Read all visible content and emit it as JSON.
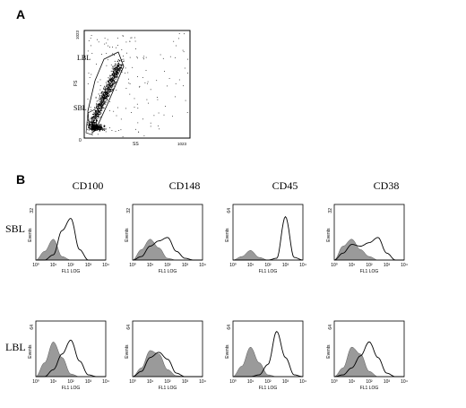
{
  "figure": {
    "panel_a_label": "A",
    "panel_b_label": "B"
  },
  "scatter": {
    "gate_labels": [
      "LBL",
      "SBL"
    ],
    "y_axis_label": "FS",
    "x_axis_label": "SS",
    "axis_min": "0",
    "axis_max": "1023"
  },
  "histograms": {
    "columns": [
      "CD100",
      "CD148",
      "CD45",
      "CD38"
    ],
    "rows": [
      "SBL",
      "LBL"
    ],
    "y_axis_label": "Events",
    "x_axis_label": "FL1 LOG",
    "x_ticks": [
      "10⁰",
      "10¹",
      "10²",
      "10³",
      "10⁴"
    ],
    "y_max": [
      [
        "32",
        "32",
        "64",
        "32"
      ],
      [
        "64",
        "64",
        "64",
        "64"
      ]
    ]
  },
  "chart_data": [
    {
      "type": "scatter",
      "xlabel": "SS",
      "ylabel": "FS",
      "xlim": [
        0,
        1023
      ],
      "ylim": [
        0,
        1023
      ],
      "annotations": [
        "LBL",
        "SBL"
      ]
    },
    {
      "type": "area",
      "row": "SBL",
      "column": "CD100",
      "xlabel": "FL1 LOG",
      "ylabel": "Events",
      "ylim": [
        0,
        32
      ],
      "x_scale": "log",
      "x": [
        0,
        0.5,
        1,
        1.5,
        2,
        2.5,
        3,
        3.5,
        4
      ],
      "series": [
        {
          "values": [
            0,
            5,
            12,
            2,
            0,
            0,
            0,
            0,
            0
          ]
        },
        {
          "values": [
            0,
            0,
            3,
            17,
            24,
            6,
            0,
            0,
            0
          ]
        }
      ]
    },
    {
      "type": "area",
      "row": "SBL",
      "column": "CD148",
      "xlabel": "FL1 LOG",
      "ylabel": "Events",
      "ylim": [
        0,
        32
      ],
      "x_scale": "log",
      "x": [
        0,
        0.5,
        1,
        1.5,
        2,
        2.5,
        3,
        3.5,
        4
      ],
      "series": [
        {
          "values": [
            0,
            6,
            12,
            7,
            1,
            0,
            0,
            0,
            0
          ]
        },
        {
          "values": [
            0,
            2,
            8,
            11,
            13,
            5,
            1,
            0,
            0
          ]
        }
      ]
    },
    {
      "type": "area",
      "row": "SBL",
      "column": "CD45",
      "xlabel": "FL1 LOG",
      "ylabel": "Events",
      "ylim": [
        0,
        64
      ],
      "x_scale": "log",
      "x": [
        0,
        0.5,
        1,
        1.5,
        2,
        2.5,
        3,
        3.5,
        4
      ],
      "series": [
        {
          "values": [
            0,
            4,
            11,
            3,
            0,
            0,
            0,
            0,
            0
          ]
        },
        {
          "values": [
            0,
            0,
            0,
            0,
            0,
            2,
            50,
            3,
            0
          ]
        }
      ]
    },
    {
      "type": "area",
      "row": "SBL",
      "column": "CD38",
      "xlabel": "FL1 LOG",
      "ylabel": "Events",
      "ylim": [
        0,
        32
      ],
      "x_scale": "log",
      "x": [
        0,
        0.5,
        1,
        1.5,
        2,
        2.5,
        3,
        3.5,
        4
      ],
      "series": [
        {
          "values": [
            0,
            8,
            12,
            6,
            2,
            0,
            0,
            0,
            0
          ]
        },
        {
          "values": [
            0,
            4,
            9,
            8,
            10,
            13,
            4,
            0,
            0
          ]
        }
      ]
    },
    {
      "type": "area",
      "row": "LBL",
      "column": "CD100",
      "xlabel": "FL1 LOG",
      "ylabel": "Events",
      "ylim": [
        0,
        64
      ],
      "x_scale": "log",
      "x": [
        0,
        0.5,
        1,
        1.5,
        2,
        2.5,
        3,
        3.5,
        4
      ],
      "series": [
        {
          "values": [
            0,
            16,
            40,
            22,
            3,
            0,
            0,
            0,
            0
          ]
        },
        {
          "values": [
            0,
            0,
            8,
            26,
            42,
            18,
            2,
            0,
            0
          ]
        }
      ]
    },
    {
      "type": "area",
      "row": "LBL",
      "column": "CD148",
      "xlabel": "FL1 LOG",
      "ylabel": "Events",
      "ylim": [
        0,
        64
      ],
      "x_scale": "log",
      "x": [
        0,
        0.5,
        1,
        1.5,
        2,
        2.5,
        3,
        3.5,
        4
      ],
      "series": [
        {
          "values": [
            0,
            10,
            30,
            26,
            8,
            1,
            0,
            0,
            0
          ]
        },
        {
          "values": [
            0,
            6,
            22,
            28,
            20,
            4,
            0,
            0,
            0
          ]
        }
      ]
    },
    {
      "type": "area",
      "row": "LBL",
      "column": "CD45",
      "xlabel": "FL1 LOG",
      "ylabel": "Events",
      "ylim": [
        0,
        64
      ],
      "x_scale": "log",
      "x": [
        0,
        0.5,
        1,
        1.5,
        2,
        2.5,
        3,
        3.5,
        4
      ],
      "series": [
        {
          "values": [
            0,
            12,
            34,
            16,
            2,
            0,
            0,
            0,
            0
          ]
        },
        {
          "values": [
            0,
            0,
            0,
            2,
            14,
            52,
            22,
            2,
            0
          ]
        }
      ]
    },
    {
      "type": "area",
      "row": "LBL",
      "column": "CD38",
      "xlabel": "FL1 LOG",
      "ylabel": "Events",
      "ylim": [
        0,
        64
      ],
      "x_scale": "log",
      "x": [
        0,
        0.5,
        1,
        1.5,
        2,
        2.5,
        3,
        3.5,
        4
      ],
      "series": [
        {
          "values": [
            0,
            10,
            34,
            26,
            6,
            0,
            0,
            0,
            0
          ]
        },
        {
          "values": [
            0,
            2,
            10,
            24,
            40,
            22,
            4,
            0,
            0
          ]
        }
      ]
    }
  ]
}
